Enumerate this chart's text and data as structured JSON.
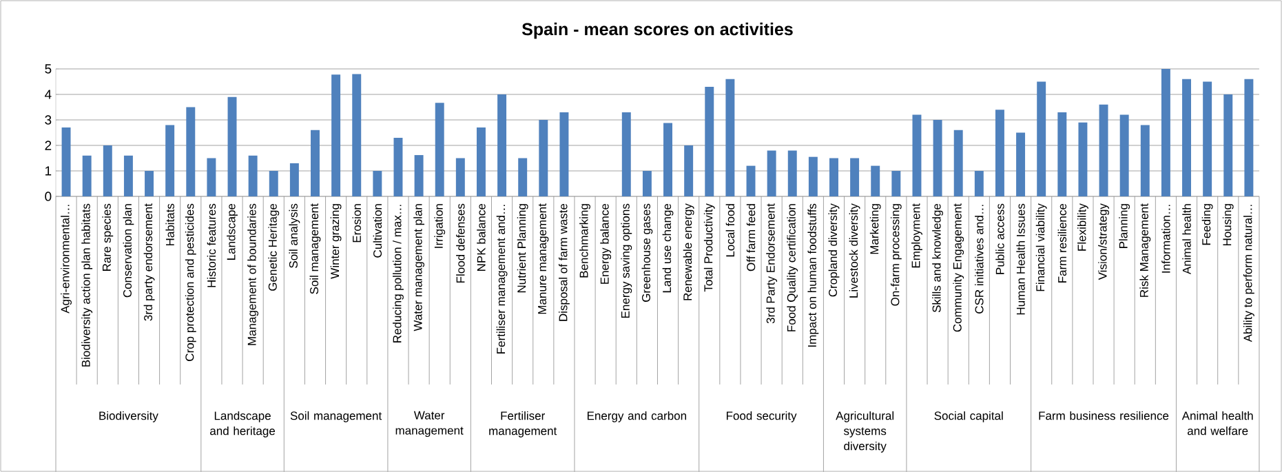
{
  "chart_data": {
    "type": "bar",
    "title": "Spain - mean scores on activities",
    "categories": [
      "Agri-environmental…",
      "Biodiversity action plan habitats",
      "Rare species",
      "Conservation plan",
      "3rd party endorsement",
      "Habitats",
      "Crop protection and pesticides",
      "Historic features",
      "Landscape",
      "Management of boundaries",
      "Genetic Heritage",
      "Soil analysis",
      "Soil management",
      "Winter grazing",
      "Erosion",
      "Cultivation",
      "Reducing pollution / max…",
      "Water management plan",
      "Irrigation",
      "Flood defenses",
      "NPK balance",
      "Fertiliser management and…",
      "Nutrient Planning",
      "Manure management",
      "Disposal of farm waste",
      "Benchmarking",
      "Energy balance",
      "Energy saving options",
      "Greenhouse gases",
      "Land use change",
      "Renewable energy",
      "Total Productivity",
      "Local food",
      "Off farm feed",
      "3rd Party Endorsement",
      "Food Quality certification",
      "Impact on human foodstuffs",
      "Cropland diversity",
      "Livestock diversity",
      "Marketing",
      "On-farm processing",
      "Employment",
      "Skills and knowledge",
      "Community Engagement",
      "CSR initiatives and…",
      "Public access",
      "Human Health Issues",
      "Financial viability",
      "Farm resilience",
      "Flexibility",
      "Vision/strategy",
      "Planning",
      "Risk Management",
      "Information…",
      "Animal health",
      "Feeding",
      "Housing",
      "Ability to perform natural…"
    ],
    "values": [
      2.7,
      1.6,
      2.0,
      1.6,
      1.0,
      2.8,
      3.5,
      1.5,
      3.9,
      1.6,
      1.0,
      1.3,
      2.6,
      4.78,
      4.8,
      1.0,
      2.3,
      1.62,
      3.67,
      1.5,
      2.7,
      4.0,
      1.5,
      3.0,
      3.3,
      null,
      null,
      3.3,
      1.0,
      2.88,
      2.0,
      4.3,
      4.6,
      1.2,
      1.8,
      1.8,
      1.55,
      1.5,
      1.5,
      1.2,
      1.0,
      3.2,
      3.0,
      2.6,
      1.0,
      3.4,
      2.5,
      4.5,
      3.3,
      2.9,
      3.6,
      3.2,
      2.8,
      5.0,
      4.6,
      4.5,
      4.0,
      4.6
    ],
    "color": "#4f81bd",
    "ylim": [
      0,
      5
    ],
    "yticks": [
      0,
      1,
      2,
      3,
      4,
      5
    ],
    "grid": "y",
    "annotations": [
      "Biodiversity",
      "Landscape and heritage",
      "Soil management",
      "Water management",
      "Fertiliser management",
      "Energy and carbon",
      "Food security",
      "Agricultural systems diversity",
      "Social capital",
      "Farm business resilience",
      "Animal health and welfare"
    ]
  }
}
